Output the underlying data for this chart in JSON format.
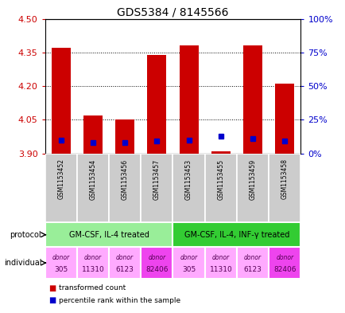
{
  "title": "GDS5384 / 8145566",
  "samples": [
    "GSM1153452",
    "GSM1153454",
    "GSM1153456",
    "GSM1153457",
    "GSM1153453",
    "GSM1153455",
    "GSM1153459",
    "GSM1153458"
  ],
  "red_values": [
    4.37,
    4.07,
    4.05,
    4.34,
    4.38,
    3.91,
    4.38,
    4.21
  ],
  "blue_values": [
    10,
    8,
    8,
    9,
    10,
    13,
    11,
    9
  ],
  "ylim": [
    3.9,
    4.5
  ],
  "yticks_left": [
    3.9,
    4.05,
    4.2,
    4.35,
    4.5
  ],
  "yticks_right": [
    0,
    25,
    50,
    75,
    100
  ],
  "right_ylim": [
    0,
    100
  ],
  "bar_base": 3.9,
  "protocol_groups": [
    {
      "label": "GM-CSF, IL-4 treated",
      "start": 0,
      "end": 4,
      "color": "#99ee99"
    },
    {
      "label": "GM-CSF, IL-4, INF-γ treated",
      "start": 4,
      "end": 8,
      "color": "#33cc33"
    }
  ],
  "ind_colors": [
    "#ffaaff",
    "#ffaaff",
    "#ffaaff",
    "#ee44ee",
    "#ffaaff",
    "#ffaaff",
    "#ffaaff",
    "#ee44ee"
  ],
  "ind_labels_top": [
    "donor",
    "donor",
    "donor",
    "donor",
    "donor",
    "donor",
    "donor",
    "donor"
  ],
  "ind_labels_bot": [
    "305",
    "11310",
    "6123",
    "82406",
    "305",
    "11310",
    "6123",
    "82406"
  ],
  "bar_color": "#cc0000",
  "blue_color": "#0000cc",
  "bar_width": 0.6,
  "tick_color_left": "#cc0000",
  "tick_color_right": "#0000cc",
  "sample_bg_color": "#cccccc",
  "legend_items": [
    {
      "color": "#cc0000",
      "label": "transformed count"
    },
    {
      "color": "#0000cc",
      "label": "percentile rank within the sample"
    }
  ]
}
